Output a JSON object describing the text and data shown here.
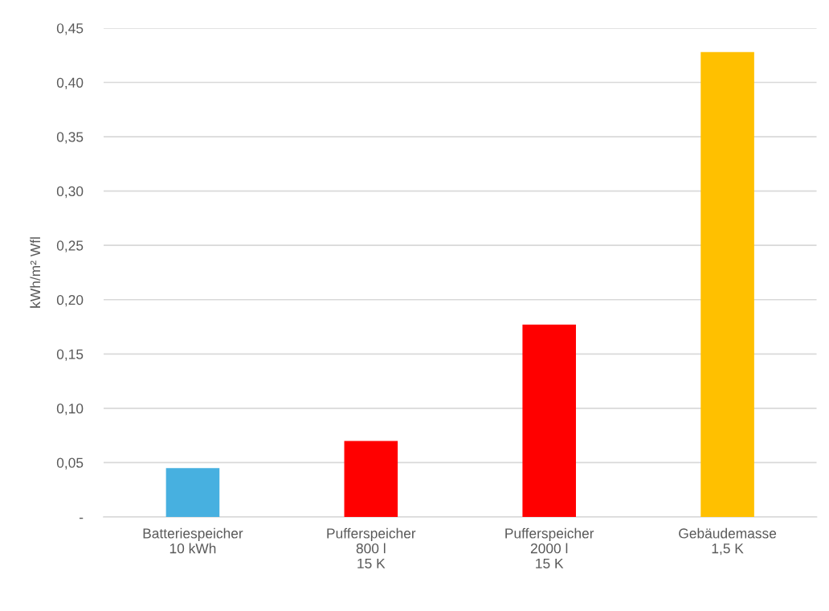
{
  "chart_data": {
    "type": "bar",
    "ylabel": "kWh/m² Wfl",
    "categories": [
      "Batteriespeicher\n10 kWh",
      "Pufferspeicher\n800 l\n15 K",
      "Pufferspeicher\n2000 l\n15 K",
      "Gebäudemasse\n1,5 K"
    ],
    "values": [
      0.045,
      0.07,
      0.177,
      0.428
    ],
    "colors": [
      "#47b0e0",
      "#ff0000",
      "#ff0000",
      "#ffc000"
    ],
    "ylim": [
      0,
      0.45
    ],
    "yticks": [
      {
        "value": 0,
        "label": "-"
      },
      {
        "value": 0.05,
        "label": "0,05"
      },
      {
        "value": 0.1,
        "label": "0,10"
      },
      {
        "value": 0.15,
        "label": "0,15"
      },
      {
        "value": 0.2,
        "label": "0,20"
      },
      {
        "value": 0.25,
        "label": "0,25"
      },
      {
        "value": 0.3,
        "label": "0,30"
      },
      {
        "value": 0.35,
        "label": "0,35"
      },
      {
        "value": 0.4,
        "label": "0,40"
      },
      {
        "value": 0.45,
        "label": "0,45"
      }
    ],
    "grid": "y",
    "legend": false
  }
}
